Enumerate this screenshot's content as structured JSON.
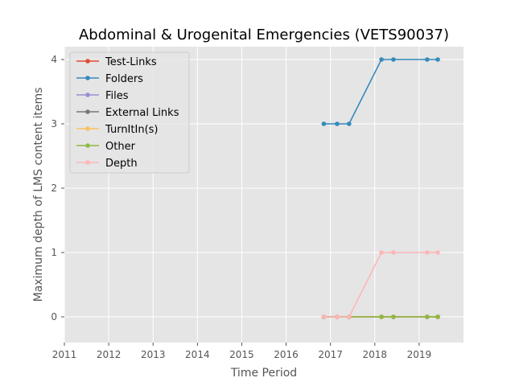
{
  "chart_data": {
    "type": "line",
    "title": "Abdominal & Urogenital Emergencies (VETS90037)",
    "xlabel": "Time Period",
    "ylabel": "Maximum depth of LMS content items",
    "xlim": [
      2011,
      2020
    ],
    "ylim": [
      -0.4,
      4.2
    ],
    "xticks": [
      2011,
      2012,
      2013,
      2014,
      2015,
      2016,
      2017,
      2018,
      2019
    ],
    "yticks": [
      0,
      1,
      2,
      3,
      4
    ],
    "grid": true,
    "legend_position": "top-left",
    "x": [
      2016.85,
      2017.15,
      2017.42,
      2018.15,
      2018.42,
      2019.18,
      2019.42
    ],
    "series": [
      {
        "name": "Test-Links",
        "color": "#E24A33",
        "values": [
          0,
          0,
          0,
          0,
          0,
          0,
          0
        ]
      },
      {
        "name": "Folders",
        "color": "#348ABD",
        "values": [
          3,
          3,
          3,
          4,
          4,
          4,
          4
        ]
      },
      {
        "name": "Files",
        "color": "#988ED5",
        "values": [
          0,
          0,
          0,
          0,
          0,
          0,
          0
        ]
      },
      {
        "name": "External Links",
        "color": "#777777",
        "values": [
          0,
          0,
          0,
          0,
          0,
          0,
          0
        ]
      },
      {
        "name": "TurnItIn(s)",
        "color": "#FBC15E",
        "values": [
          0,
          0,
          0,
          0,
          0,
          0,
          0
        ]
      },
      {
        "name": "Other",
        "color": "#8EBA42",
        "values": [
          0,
          0,
          0,
          0,
          0,
          0,
          0
        ]
      },
      {
        "name": "Depth",
        "color": "#FFB5B8",
        "values": [
          0,
          0,
          0,
          1,
          1,
          1,
          1
        ]
      }
    ]
  }
}
